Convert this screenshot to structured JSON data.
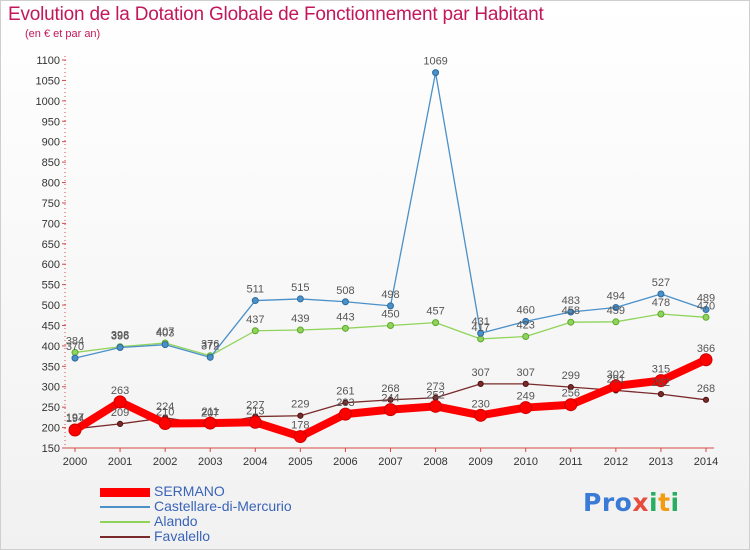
{
  "title": "Evolution de la Dotation Globale de Fonctionnement par Habitant",
  "subtitle": "(en € et par an)",
  "logo": {
    "text": "Proxiti",
    "letter_colors": [
      "#3a7bd5",
      "#3a7bd5",
      "#3a7bd5",
      "#e74c3c",
      "#27ae60",
      "#f39c12",
      "#27ae60"
    ]
  },
  "chart_data": {
    "type": "line",
    "x": [
      2000,
      2001,
      2002,
      2003,
      2004,
      2005,
      2006,
      2007,
      2008,
      2009,
      2010,
      2011,
      2012,
      2013,
      2014
    ],
    "ylim": [
      150,
      1100
    ],
    "yticks": [
      150,
      200,
      250,
      300,
      350,
      400,
      450,
      500,
      550,
      600,
      650,
      700,
      750,
      800,
      850,
      900,
      950,
      1000,
      1050,
      1100
    ],
    "grid": false,
    "legend_position": "bottom-left",
    "series": [
      {
        "name": "SERMANO",
        "color": "#ff0000",
        "values": [
          194,
          263,
          210,
          211,
          213,
          178,
          233,
          244,
          252,
          230,
          249,
          256,
          302,
          315,
          366
        ]
      },
      {
        "name": "Castellare-di-Mercurio",
        "color": "#4a90c9",
        "values": [
          370,
          396,
          403,
          372,
          511,
          515,
          508,
          498,
          1069,
          431,
          460,
          483,
          494,
          527,
          489
        ]
      },
      {
        "name": "Alando",
        "color": "#8fd45a",
        "values": [
          384,
          398,
          407,
          376,
          437,
          439,
          443,
          450,
          457,
          417,
          423,
          458,
          459,
          478,
          470
        ]
      },
      {
        "name": "Favalello",
        "color": "#7a2a2a",
        "values": [
          197,
          209,
          224,
          207,
          227,
          229,
          261,
          268,
          273,
          307,
          307,
          299,
          291,
          282,
          268
        ]
      }
    ],
    "data_labels": [
      [
        194,
        263,
        210,
        211,
        213,
        178,
        233,
        244,
        252,
        230,
        249,
        256,
        302,
        315,
        366
      ],
      [
        370,
        396,
        403,
        372,
        511,
        515,
        508,
        498,
        1069,
        431,
        460,
        483,
        494,
        527,
        489
      ],
      [
        384,
        398,
        407,
        376,
        437,
        439,
        443,
        450,
        457,
        417,
        423,
        458,
        459,
        478,
        470
      ],
      [
        197,
        209,
        224,
        207,
        227,
        229,
        261,
        268,
        273,
        307,
        307,
        299,
        291,
        282,
        268
      ]
    ]
  }
}
